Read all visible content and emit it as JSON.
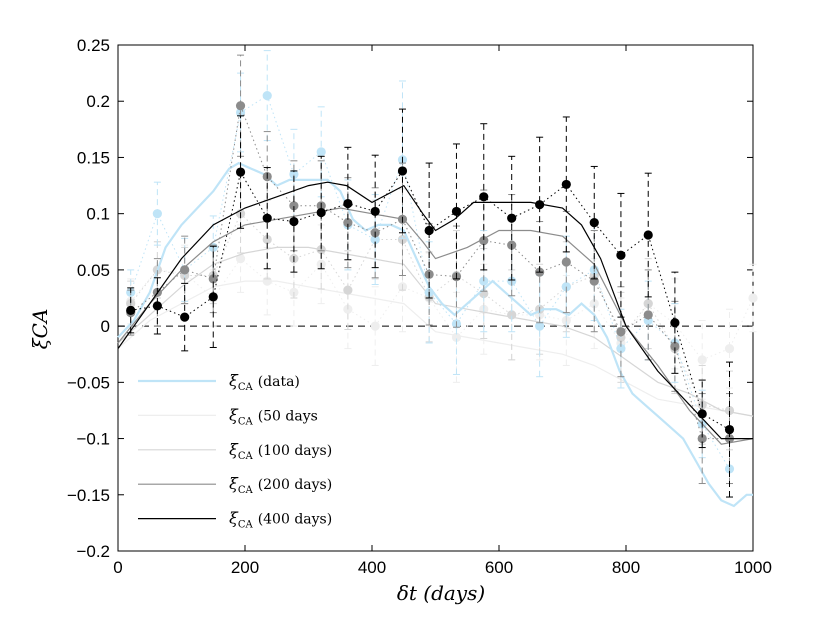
{
  "chart_data": {
    "type": "line",
    "title": "",
    "xlabel": "δt (days)",
    "ylabel": "ξCA",
    "xlim": [
      0,
      1000
    ],
    "ylim": [
      -0.2,
      0.25
    ],
    "xticks": [
      0,
      200,
      400,
      600,
      800,
      1000
    ],
    "xtick_labels": [
      "0",
      "200",
      "400",
      "600",
      "800",
      "1000"
    ],
    "yticks": [
      -0.2,
      -0.15,
      -0.1,
      -0.05,
      0,
      0.05,
      0.1,
      0.15,
      0.2,
      0.25
    ],
    "ytick_labels": [
      "−0.2",
      "−0.15",
      "−0.1",
      "−0.05",
      "0",
      "0.05",
      "0.1",
      "0.15",
      "0.2",
      "0.25"
    ],
    "reference_line": {
      "y": 0,
      "style": "dashed",
      "color": "#000000"
    },
    "legend_position": "lower-left",
    "legend": [
      {
        "symbol": "ξ",
        "sub": "CA",
        "text": "(data)",
        "series": "data"
      },
      {
        "symbol": "ξ",
        "sub": "CA",
        "text": "(50 days",
        "series": "50 days"
      },
      {
        "symbol": "ξ",
        "sub": "CA",
        "text": "(100 days)",
        "series": "100 days"
      },
      {
        "symbol": "ξ",
        "sub": "CA",
        "text": "(200 days)",
        "series": "200 days"
      },
      {
        "symbol": "ξ",
        "sub": "CA",
        "text": "(400 days)",
        "series": "400 days"
      }
    ],
    "series": [
      {
        "name": "data",
        "color": "#bfe4f7",
        "width": 2.2,
        "line": {
          "x": [
            0,
            25,
            50,
            75,
            100,
            125,
            150,
            175,
            190,
            210,
            230,
            250,
            270,
            290,
            310,
            330,
            350,
            370,
            390,
            410,
            430,
            450,
            470,
            490,
            510,
            530,
            550,
            570,
            590,
            610,
            630,
            650,
            670,
            690,
            710,
            730,
            750,
            770,
            790,
            810,
            830,
            850,
            870,
            890,
            910,
            930,
            950,
            970,
            990,
            1000
          ],
          "y": [
            -0.01,
            0.005,
            0.03,
            0.07,
            0.09,
            0.105,
            0.12,
            0.14,
            0.145,
            0.14,
            0.135,
            0.125,
            0.13,
            0.13,
            0.13,
            0.13,
            0.12,
            0.095,
            0.085,
            0.09,
            0.09,
            0.085,
            0.06,
            0.035,
            0.02,
            0.01,
            0.02,
            0.03,
            0.04,
            0.03,
            0.02,
            0.01,
            0.015,
            0.015,
            0.01,
            0.02,
            0.01,
            -0.01,
            -0.04,
            -0.06,
            -0.07,
            -0.08,
            -0.09,
            -0.1,
            -0.12,
            -0.14,
            -0.155,
            -0.16,
            -0.15,
            -0.15
          ]
        },
        "points": {
          "x": [
            20,
            62,
            105,
            150,
            193,
            235,
            277,
            320,
            362,
            405,
            448,
            490,
            533,
            576,
            620,
            664,
            706,
            750,
            792,
            835,
            877,
            920,
            963
          ],
          "y": [
            0.03,
            0.1,
            0.05,
            0.07,
            0.19,
            0.205,
            0.135,
            0.155,
            0.09,
            0.077,
            0.148,
            0.03,
            0.002,
            0.04,
            0.04,
            0.0,
            0.035,
            0.05,
            -0.02,
            0.005,
            -0.015,
            -0.087,
            -0.127
          ],
          "err": [
            0.02,
            0.028,
            0.028,
            0.028,
            0.035,
            0.04,
            0.04,
            0.04,
            0.04,
            0.04,
            0.07,
            0.045,
            0.045,
            0.045,
            0.045,
            0.045,
            0.045,
            0.045,
            0.035,
            0.035,
            0.035,
            0.03,
            0.025
          ]
        }
      },
      {
        "name": "50 days",
        "color": "#eeeeee",
        "width": 1.2,
        "line": {
          "x": [
            0,
            50,
            100,
            150,
            200,
            250,
            300,
            350,
            400,
            450,
            500,
            550,
            600,
            650,
            700,
            750,
            800,
            850,
            900,
            950,
            1000
          ],
          "y": [
            -0.02,
            0.005,
            0.02,
            0.035,
            0.04,
            0.04,
            0.035,
            0.03,
            0.025,
            0.02,
            -0.005,
            -0.01,
            -0.015,
            -0.02,
            -0.025,
            -0.035,
            -0.05,
            -0.065,
            -0.07,
            -0.075,
            -0.08
          ]
        },
        "points": {
          "x": [
            20,
            62,
            105,
            150,
            193,
            235,
            277,
            320,
            362,
            405,
            448,
            490,
            533,
            576,
            620,
            664,
            706,
            750,
            792,
            835,
            877,
            920,
            963,
            1000
          ],
          "y": [
            0.022,
            0.05,
            0.047,
            0.025,
            0.06,
            0.04,
            0.03,
            0.055,
            0.015,
            0.0,
            0.035,
            0.025,
            -0.01,
            0.015,
            0.01,
            0.01,
            0.005,
            0.02,
            -0.015,
            0.02,
            0.002,
            -0.03,
            -0.02,
            0.025
          ],
          "err": [
            0.02,
            0.025,
            0.025,
            0.025,
            0.03,
            0.03,
            0.03,
            0.035,
            0.035,
            0.035,
            0.04,
            0.04,
            0.04,
            0.04,
            0.04,
            0.04,
            0.04,
            0.04,
            0.04,
            0.04,
            0.04,
            0.035,
            0.035,
            0.03
          ]
        }
      },
      {
        "name": "100 days",
        "color": "#d6d6d6",
        "width": 1.2,
        "line": {
          "x": [
            0,
            50,
            100,
            150,
            200,
            250,
            300,
            350,
            400,
            450,
            500,
            550,
            600,
            650,
            700,
            750,
            800,
            850,
            900,
            950,
            1000
          ],
          "y": [
            -0.015,
            0.01,
            0.035,
            0.055,
            0.065,
            0.07,
            0.07,
            0.065,
            0.06,
            0.055,
            0.02,
            0.015,
            0.01,
            0.005,
            0.0,
            -0.01,
            -0.03,
            -0.05,
            -0.06,
            -0.075,
            -0.08
          ]
        },
        "points": {
          "x": [
            20,
            62,
            105,
            150,
            193,
            235,
            277,
            320,
            362,
            405,
            448,
            490,
            533,
            576,
            620,
            664,
            706,
            750,
            792,
            835,
            877,
            920,
            963
          ],
          "y": [
            0.02,
            0.05,
            0.045,
            0.045,
            0.1,
            0.077,
            0.06,
            0.068,
            0.032,
            0.077,
            0.077,
            0.026,
            0.045,
            0.029,
            0.01,
            0.015,
            0.035,
            0.045,
            -0.01,
            0.02,
            -0.02,
            -0.07,
            -0.075
          ],
          "err": [
            0.02,
            0.025,
            0.025,
            0.025,
            0.035,
            0.035,
            0.035,
            0.035,
            0.035,
            0.035,
            0.045,
            0.04,
            0.04,
            0.04,
            0.04,
            0.04,
            0.04,
            0.04,
            0.04,
            0.04,
            0.04,
            0.035,
            0.035
          ]
        }
      },
      {
        "name": "200 days",
        "color": "#8c8c8c",
        "width": 1.2,
        "line": {
          "x": [
            0,
            50,
            100,
            150,
            200,
            250,
            300,
            350,
            400,
            450,
            480,
            500,
            550,
            600,
            650,
            700,
            750,
            800,
            850,
            900,
            950,
            1000
          ],
          "y": [
            -0.015,
            0.02,
            0.05,
            0.075,
            0.09,
            0.095,
            0.1,
            0.105,
            0.1,
            0.095,
            0.075,
            0.06,
            0.07,
            0.085,
            0.085,
            0.08,
            0.055,
            0.0,
            -0.035,
            -0.075,
            -0.105,
            -0.1
          ]
        },
        "points": {
          "x": [
            20,
            62,
            105,
            150,
            193,
            235,
            277,
            320,
            362,
            405,
            448,
            490,
            533,
            576,
            620,
            664,
            706,
            750,
            792,
            835,
            877,
            920,
            963
          ],
          "y": [
            0.012,
            0.03,
            0.05,
            0.042,
            0.196,
            0.133,
            0.107,
            0.107,
            0.092,
            0.083,
            0.095,
            0.046,
            0.044,
            0.076,
            0.072,
            0.048,
            0.057,
            0.04,
            -0.005,
            0.01,
            -0.018,
            -0.1,
            -0.1
          ],
          "err": [
            0.02,
            0.03,
            0.03,
            0.03,
            0.045,
            0.04,
            0.04,
            0.04,
            0.04,
            0.04,
            0.05,
            0.045,
            0.045,
            0.045,
            0.045,
            0.045,
            0.045,
            0.045,
            0.04,
            0.04,
            0.04,
            0.04,
            0.04
          ]
        }
      },
      {
        "name": "400 days",
        "color": "#000000",
        "width": 1.2,
        "line": {
          "x": [
            0,
            50,
            100,
            150,
            200,
            250,
            300,
            330,
            360,
            400,
            450,
            480,
            500,
            530,
            560,
            600,
            650,
            700,
            730,
            760,
            800,
            850,
            900,
            950,
            1000
          ],
          "y": [
            -0.02,
            0.02,
            0.06,
            0.09,
            0.105,
            0.115,
            0.125,
            0.128,
            0.125,
            0.11,
            0.125,
            0.1,
            0.085,
            0.095,
            0.11,
            0.11,
            0.11,
            0.105,
            0.09,
            0.06,
            0.0,
            -0.04,
            -0.07,
            -0.1,
            -0.1
          ]
        },
        "points": {
          "x": [
            20,
            62,
            105,
            150,
            193,
            235,
            277,
            320,
            362,
            405,
            448,
            490,
            533,
            576,
            620,
            664,
            706,
            750,
            792,
            835,
            877,
            920,
            963
          ],
          "y": [
            0.014,
            0.018,
            0.008,
            0.026,
            0.137,
            0.096,
            0.093,
            0.101,
            0.109,
            0.102,
            0.138,
            0.085,
            0.102,
            0.115,
            0.096,
            0.108,
            0.126,
            0.092,
            0.063,
            0.081,
            0.003,
            -0.078,
            -0.092
          ],
          "err": [
            0.02,
            0.025,
            0.03,
            0.045,
            0.05,
            0.045,
            0.045,
            0.05,
            0.05,
            0.05,
            0.055,
            0.06,
            0.06,
            0.065,
            0.055,
            0.06,
            0.06,
            0.05,
            0.055,
            0.055,
            0.045,
            0.03,
            0.06
          ]
        }
      }
    ]
  }
}
